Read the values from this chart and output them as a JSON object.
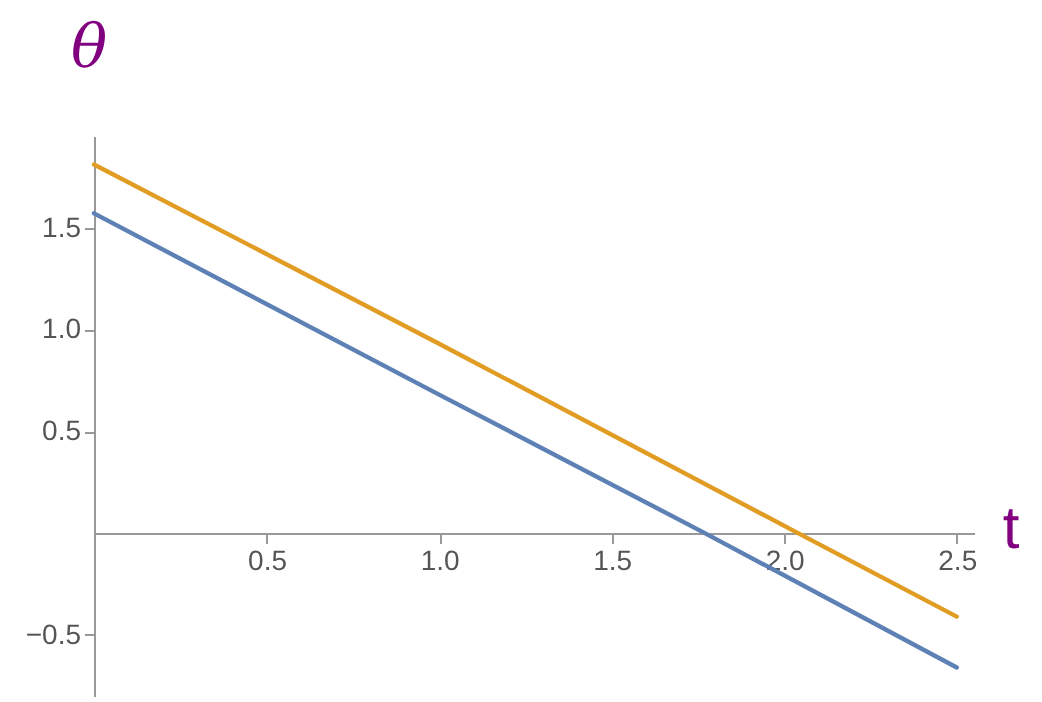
{
  "chart_data": {
    "type": "line",
    "xlabel": "t",
    "ylabel": "θ",
    "xlim": [
      0,
      2.55
    ],
    "ylim": [
      -0.8,
      1.95
    ],
    "xticks": [
      0.5,
      {
        "value": 1,
        "label": "1.0"
      },
      1.5,
      {
        "value": 2,
        "label": "2.0"
      },
      2.5
    ],
    "yticks": [
      -0.5,
      0.5,
      {
        "value": 1,
        "label": "1.0"
      },
      1.5
    ],
    "grid": false,
    "legend": false,
    "series": [
      {
        "color": "#5e81b5",
        "x": [
          0,
          1,
          1.77,
          2.5
        ],
        "values": [
          1.57,
          0.68,
          0,
          -0.66
        ]
      },
      {
        "color": "#e19c24",
        "x": [
          0,
          1,
          2.04,
          2.5
        ],
        "values": [
          1.81,
          0.93,
          0,
          -0.41
        ]
      }
    ]
  }
}
